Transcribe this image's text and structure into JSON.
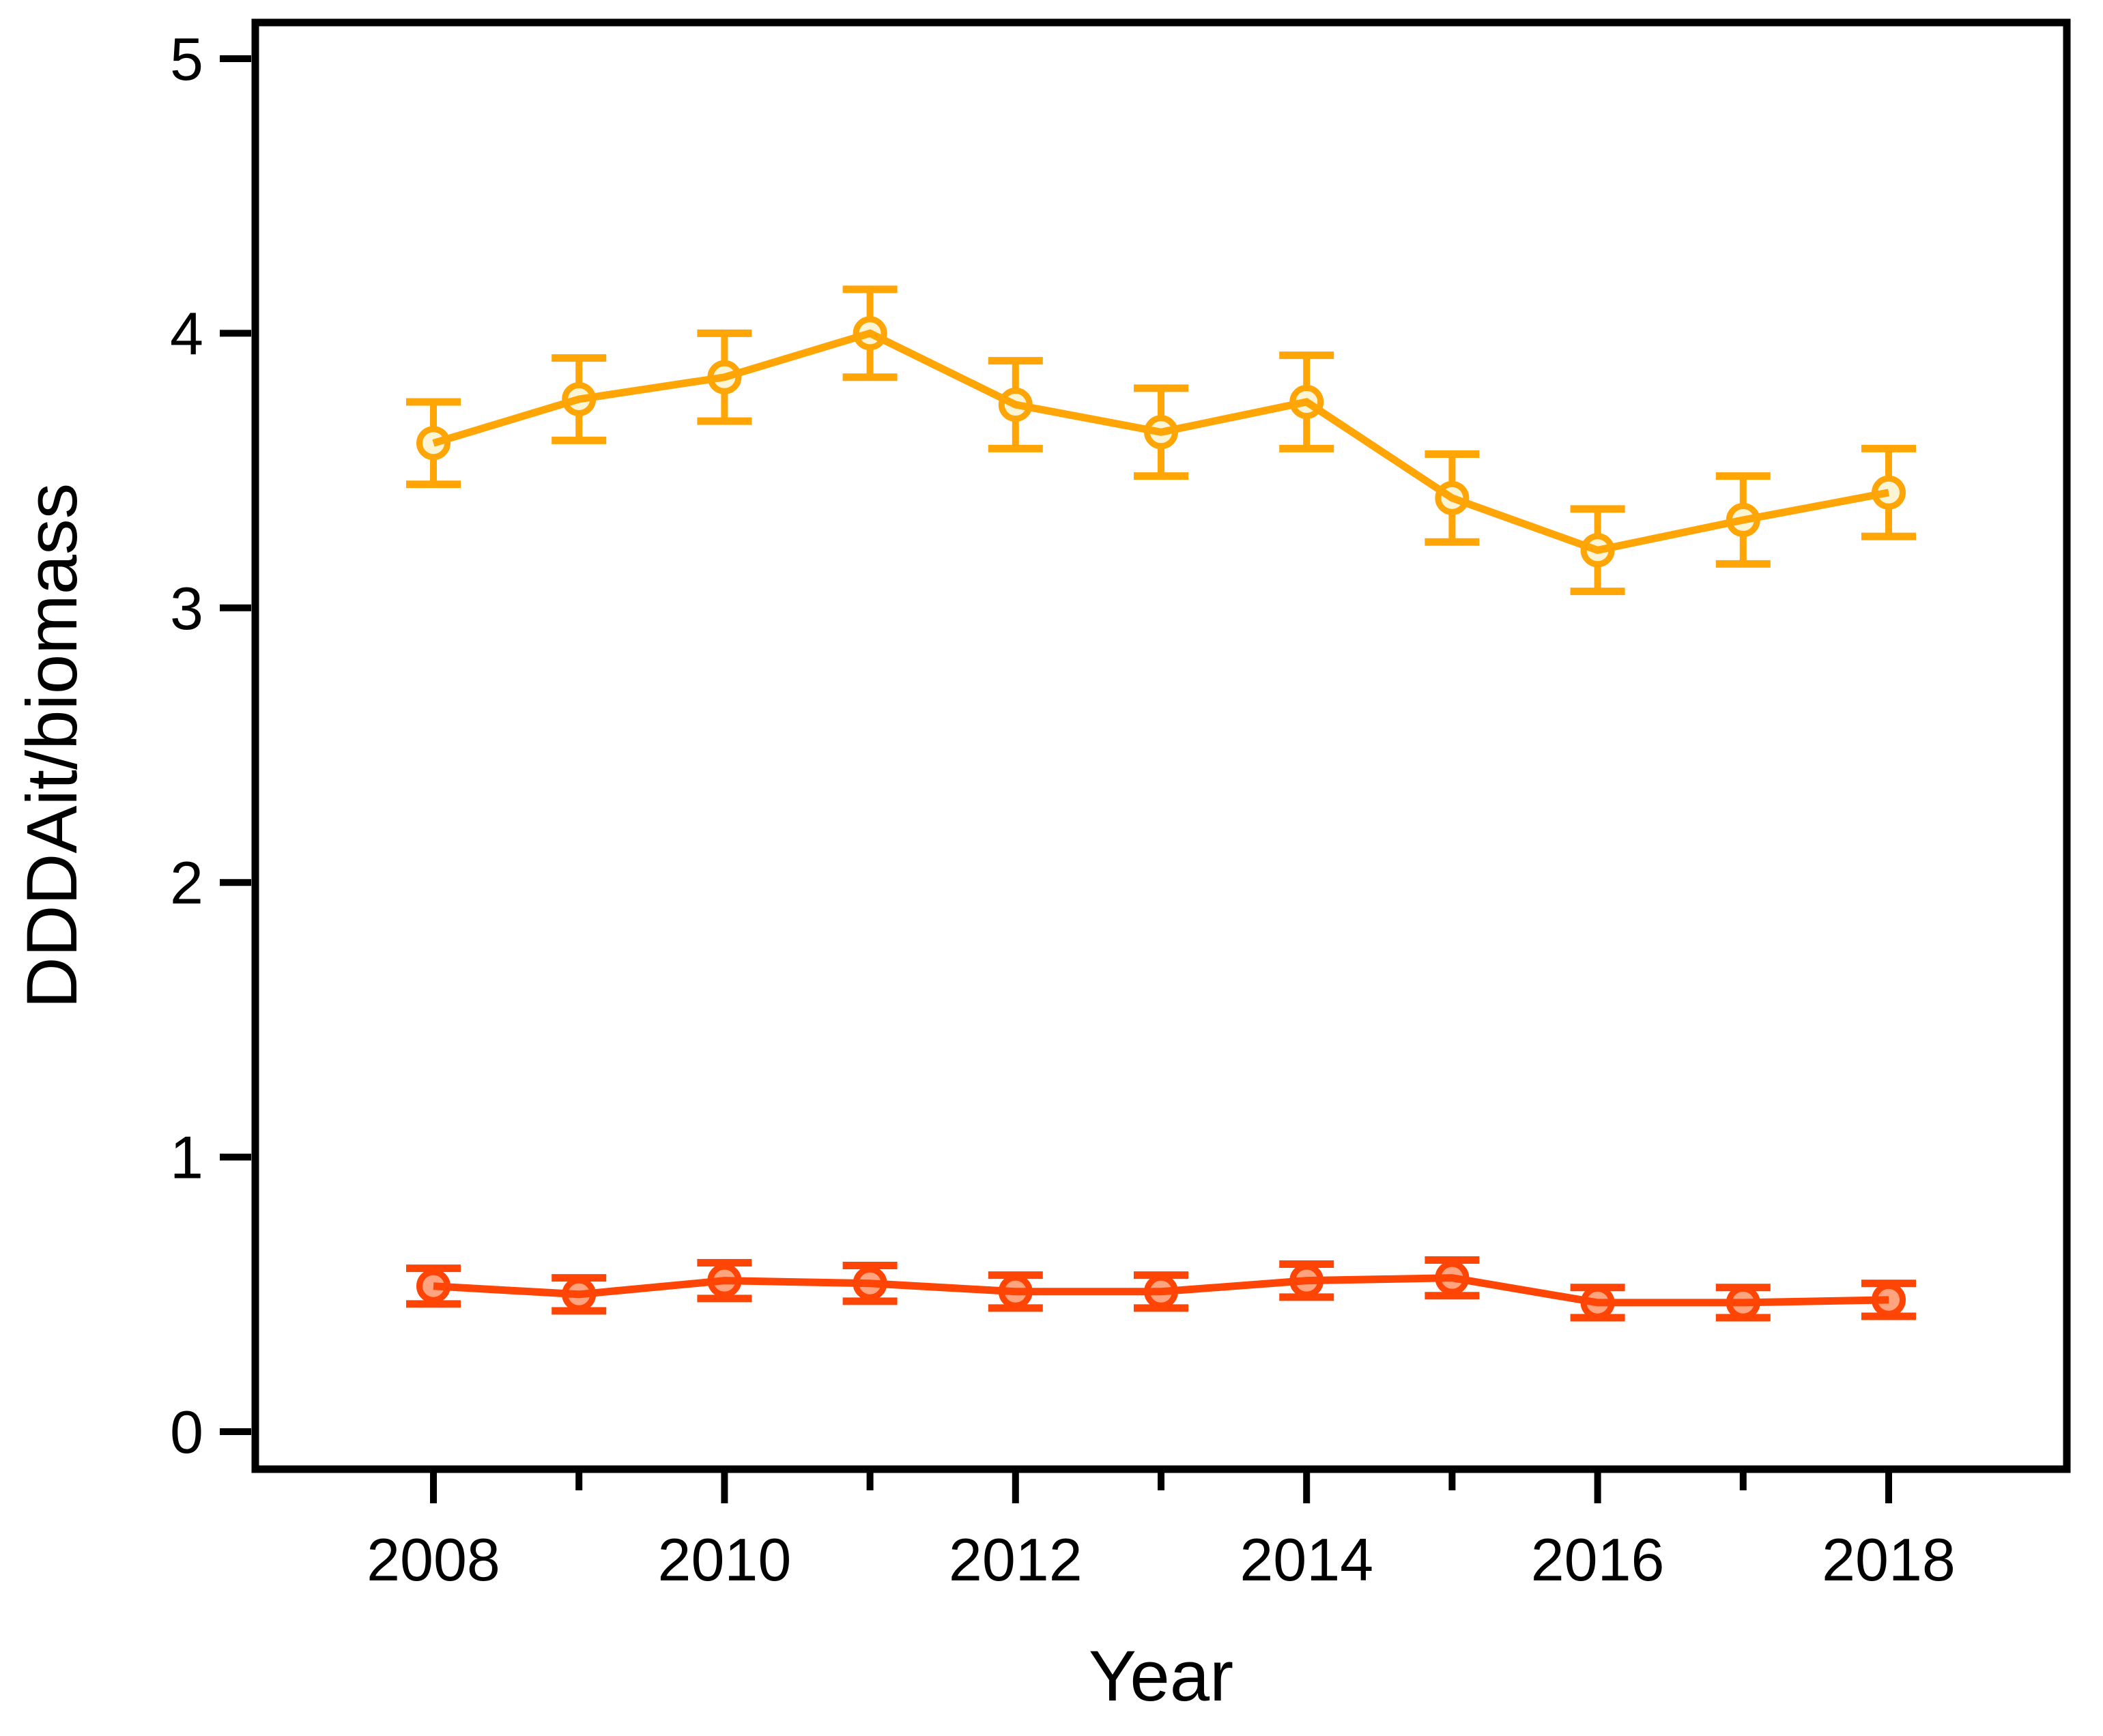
{
  "chart_data": {
    "type": "line",
    "title": "",
    "xlabel": "Year",
    "ylabel": "DDDAit/biomass",
    "background_color": "#FFFFFF",
    "axis_color": "#000000",
    "grid": false,
    "legend": "none",
    "x": [
      2008,
      2009,
      2010,
      2011,
      2012,
      2013,
      2014,
      2015,
      2016,
      2017,
      2018
    ],
    "xlim": [
      2006.8,
      2019.2
    ],
    "ylim": [
      -0.14,
      5.13
    ],
    "x_major_ticks": [
      2008,
      2010,
      2012,
      2014,
      2016,
      2018
    ],
    "x_major_tick_labels": [
      "2008",
      "2010",
      "2012",
      "2014",
      "2016",
      "2018"
    ],
    "x_minor_ticks": [
      2009,
      2011,
      2013,
      2015,
      2017
    ],
    "y_ticks": [
      0,
      1,
      2,
      3,
      4,
      5
    ],
    "y_tick_labels": [
      "0",
      "1",
      "2",
      "3",
      "4",
      "5"
    ],
    "series": [
      {
        "id": "upper-orange-series",
        "marker": "circle",
        "line_color": "#FFA505",
        "marker_stroke": "#FFA505",
        "marker_fill": "#FCF5D3",
        "values": [
          3.6,
          3.76,
          3.84,
          4.0,
          3.74,
          3.64,
          3.75,
          3.4,
          3.21,
          3.32,
          3.42
        ],
        "errors": [
          0.15,
          0.15,
          0.16,
          0.16,
          0.16,
          0.16,
          0.17,
          0.16,
          0.15,
          0.16,
          0.16
        ]
      },
      {
        "id": "lower-red-series",
        "marker": "circle",
        "line_color": "#FF4505",
        "marker_stroke": "#FF4505",
        "marker_fill": "#FFA47E",
        "values": [
          0.53,
          0.5,
          0.55,
          0.54,
          0.51,
          0.51,
          0.55,
          0.56,
          0.47,
          0.47,
          0.48
        ],
        "errors": [
          0.065,
          0.06,
          0.065,
          0.065,
          0.06,
          0.06,
          0.06,
          0.065,
          0.055,
          0.055,
          0.06
        ]
      }
    ]
  }
}
